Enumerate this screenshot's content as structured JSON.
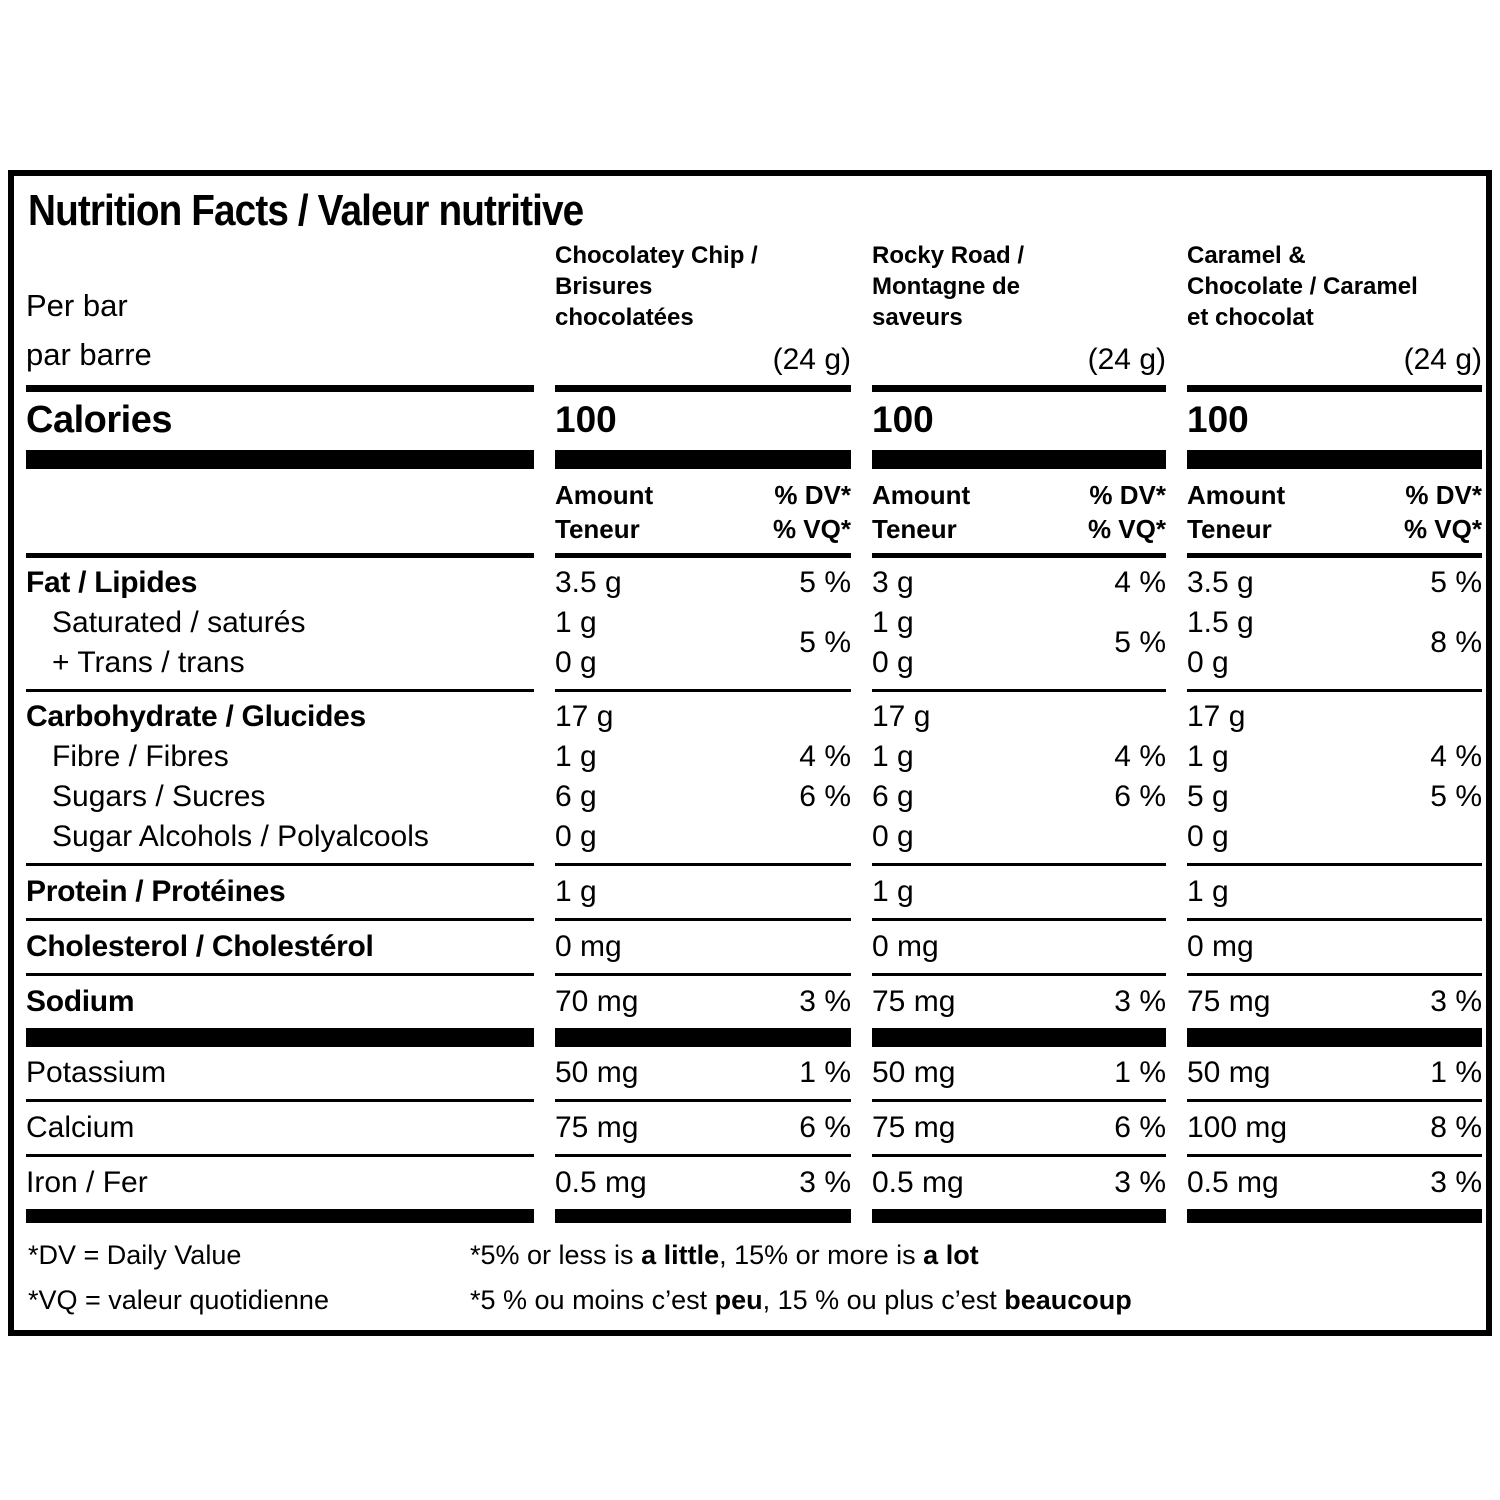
{
  "title": "Nutrition Facts / Valeur nutritive",
  "serving": {
    "line1": "Per bar",
    "line2": "par barre"
  },
  "columns": [
    {
      "name_lines": [
        "Chocolatey Chip /",
        "Brisures",
        "chocolatées"
      ],
      "size": "(24 g)",
      "calories": "100"
    },
    {
      "name_lines": [
        "Rocky Road /",
        "Montagne de",
        "saveurs"
      ],
      "size": "(24 g)",
      "calories": "100"
    },
    {
      "name_lines": [
        "Caramel &",
        "Chocolate / Caramel",
        "et chocolat"
      ],
      "size": "(24 g)",
      "calories": "100"
    }
  ],
  "calories_label": "Calories",
  "col_header": {
    "amount_line1": "Amount",
    "amount_line2": "Teneur",
    "dv_line1": "% DV*",
    "dv_line2": "% VQ*"
  },
  "rows": [
    {
      "label": "Fat / Lipides",
      "cols": [
        {
          "amount": "3.5 g",
          "dv": "5 %"
        },
        {
          "amount": "3 g",
          "dv": "4 %"
        },
        {
          "amount": "3.5 g",
          "dv": "5 %"
        }
      ]
    },
    {
      "label1": "Saturated / saturés",
      "label2": "+ Trans / trans",
      "cols": [
        {
          "amount1": "1 g",
          "amount2": "0 g",
          "dv": "5 %"
        },
        {
          "amount1": "1 g",
          "amount2": "0 g",
          "dv": "5 %"
        },
        {
          "amount1": "1.5 g",
          "amount2": "0 g",
          "dv": "8 %"
        }
      ]
    },
    {
      "label": "Carbohydrate / Glucides",
      "cols": [
        {
          "amount": "17 g",
          "dv": ""
        },
        {
          "amount": "17 g",
          "dv": ""
        },
        {
          "amount": "17 g",
          "dv": ""
        }
      ]
    },
    {
      "label": "Fibre / Fibres",
      "cols": [
        {
          "amount": "1 g",
          "dv": "4 %"
        },
        {
          "amount": "1 g",
          "dv": "4 %"
        },
        {
          "amount": "1 g",
          "dv": "4 %"
        }
      ]
    },
    {
      "label": "Sugars / Sucres",
      "cols": [
        {
          "amount": "6 g",
          "dv": "6 %"
        },
        {
          "amount": "6 g",
          "dv": "6 %"
        },
        {
          "amount": "5 g",
          "dv": "5 %"
        }
      ]
    },
    {
      "label": "Sugar Alcohols / Polyalcools",
      "cols": [
        {
          "amount": "0 g",
          "dv": ""
        },
        {
          "amount": "0 g",
          "dv": ""
        },
        {
          "amount": "0 g",
          "dv": ""
        }
      ]
    },
    {
      "label": "Protein / Protéines",
      "cols": [
        {
          "amount": "1 g",
          "dv": ""
        },
        {
          "amount": "1 g",
          "dv": ""
        },
        {
          "amount": "1 g",
          "dv": ""
        }
      ]
    },
    {
      "label": "Cholesterol / Cholestérol",
      "cols": [
        {
          "amount": "0 mg",
          "dv": ""
        },
        {
          "amount": "0 mg",
          "dv": ""
        },
        {
          "amount": "0 mg",
          "dv": ""
        }
      ]
    },
    {
      "label": "Sodium",
      "cols": [
        {
          "amount": "70 mg",
          "dv": "3 %"
        },
        {
          "amount": "75 mg",
          "dv": "3 %"
        },
        {
          "amount": "75 mg",
          "dv": "3 %"
        }
      ]
    },
    {
      "label": "Potassium",
      "cols": [
        {
          "amount": "50 mg",
          "dv": "1 %"
        },
        {
          "amount": "50 mg",
          "dv": "1 %"
        },
        {
          "amount": "50 mg",
          "dv": "1 %"
        }
      ]
    },
    {
      "label": "Calcium",
      "cols": [
        {
          "amount": "75 mg",
          "dv": "6 %"
        },
        {
          "amount": "75 mg",
          "dv": "6 %"
        },
        {
          "amount": "100 mg",
          "dv": "8 %"
        }
      ]
    },
    {
      "label": "Iron / Fer",
      "cols": [
        {
          "amount": "0.5 mg",
          "dv": "3 %"
        },
        {
          "amount": "0.5 mg",
          "dv": "3 %"
        },
        {
          "amount": "0.5 mg",
          "dv": "3 %"
        }
      ]
    }
  ],
  "footnotes": {
    "dv": "*DV = Daily Value",
    "vq": "*VQ = valeur quotidienne",
    "en": {
      "pre": "*5% or less is ",
      "bold1": "a little",
      "mid": ", 15% or more is ",
      "bold2": "a lot"
    },
    "fr": {
      "pre": "*5 % ou moins c’est ",
      "bold1": "peu",
      "mid": ", 15 % ou plus c’est ",
      "bold2": "beaucoup"
    }
  },
  "colors": {
    "ink": "#000000",
    "background": "#ffffff"
  }
}
